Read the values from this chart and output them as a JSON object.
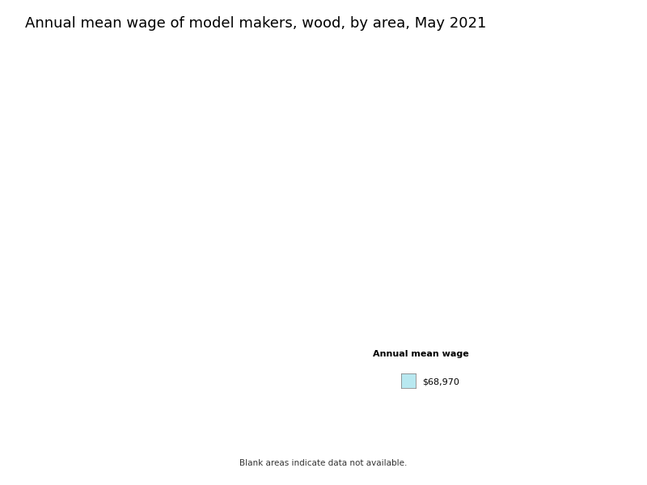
{
  "title": "Annual mean wage of model makers, wood, by area, May 2021",
  "title_fontsize": 13,
  "legend_title": "Annual mean wage",
  "legend_label": "$68,970",
  "legend_color": "#b8e8f0",
  "footnote": "Blank areas indicate data not available.",
  "background_color": "#ffffff",
  "map_face_color": "#ffffff",
  "map_edge_color": "#000000",
  "map_linewidth": 0.3,
  "highlight_color": "#b8e8f0",
  "fig_width": 8.0,
  "fig_height": 6.0,
  "dpi": 100
}
